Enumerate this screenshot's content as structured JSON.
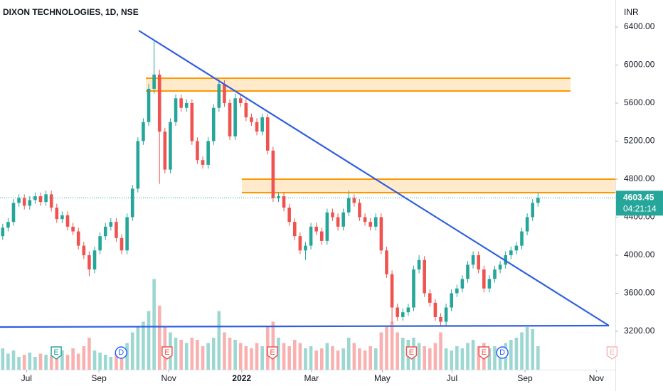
{
  "chart_data": {
    "type": "candlestick",
    "title": "DIXON TECHNOLOGIES, 1D, NSE",
    "currency": "INR",
    "countdown": "04:21:14",
    "up_color": "#26a69a",
    "down_color": "#ef5350",
    "open": [
      4200,
      4290,
      4350,
      4550,
      4600,
      4520,
      4580,
      4620,
      4560,
      4640,
      4500,
      4380,
      4420,
      4300,
      4250,
      4100,
      4000,
      3850,
      4050,
      4200,
      4300,
      4350,
      4180,
      4050,
      4400,
      4700,
      5200,
      5400,
      5750,
      5900,
      5300,
      4900,
      5400,
      5650,
      5550,
      5600,
      5200,
      5000,
      4950,
      5200,
      5550,
      5800,
      5600,
      5250,
      5650,
      5600,
      5450,
      5400,
      5300,
      5450,
      5100,
      4600,
      4620,
      4500,
      4350,
      4200,
      4050,
      4100,
      4300,
      4250,
      4150,
      4450,
      4400,
      4300,
      4450,
      4600,
      4550,
      4400,
      4350,
      4300,
      4400,
      4050,
      3800,
      3450,
      3350,
      3400,
      3450,
      3850,
      3950,
      3600,
      3500,
      3350,
      3300,
      3450,
      3600,
      3650,
      3750,
      3900,
      4000,
      3850,
      3650,
      3750,
      3850,
      3900,
      4000,
      4050,
      4100,
      4250,
      4400,
      4550
    ],
    "high": [
      4330,
      4390,
      4590,
      4640,
      4640,
      4620,
      4660,
      4660,
      4680,
      4680,
      4540,
      4460,
      4460,
      4340,
      4290,
      4140,
      4040,
      4090,
      4240,
      4340,
      4390,
      4390,
      4220,
      4440,
      4740,
      5240,
      5440,
      5800,
      6250,
      5950,
      5340,
      5440,
      5690,
      5690,
      5640,
      5640,
      5240,
      5040,
      5240,
      5590,
      5850,
      5840,
      5640,
      5700,
      5690,
      5640,
      5490,
      5440,
      5490,
      5490,
      5140,
      4660,
      4660,
      4540,
      4390,
      4240,
      4140,
      4340,
      4340,
      4290,
      4490,
      4490,
      4440,
      4490,
      4680,
      4640,
      4590,
      4440,
      4390,
      4440,
      4440,
      4090,
      3840,
      3490,
      3440,
      3490,
      3890,
      4000,
      3990,
      3640,
      3540,
      3390,
      3490,
      3640,
      3690,
      3790,
      3940,
      4040,
      4040,
      3890,
      3790,
      3890,
      3940,
      4040,
      4090,
      4140,
      4290,
      4440,
      4590,
      4660
    ],
    "low": [
      4160,
      4250,
      4310,
      4510,
      4480,
      4480,
      4540,
      4520,
      4520,
      4460,
      4340,
      4340,
      4260,
      4210,
      4060,
      3960,
      3780,
      3810,
      4010,
      4160,
      4260,
      4140,
      4010,
      4010,
      4360,
      4660,
      5160,
      5360,
      5700,
      4750,
      4860,
      4860,
      5360,
      5510,
      5510,
      5160,
      4960,
      4910,
      4910,
      5160,
      5510,
      5560,
      5210,
      5210,
      5560,
      5410,
      5360,
      5260,
      5260,
      5060,
      4560,
      4560,
      4460,
      4310,
      4160,
      4010,
      3950,
      4060,
      4210,
      4110,
      4110,
      4360,
      4260,
      4260,
      4410,
      4510,
      4360,
      4310,
      4260,
      4260,
      4010,
      3760,
      3280,
      3310,
      3310,
      3360,
      3410,
      3810,
      3560,
      3460,
      3310,
      3250,
      3260,
      3410,
      3560,
      3610,
      3710,
      3860,
      3810,
      3610,
      3610,
      3710,
      3810,
      3860,
      3960,
      4010,
      4060,
      4210,
      4360,
      4510
    ],
    "close": [
      4290,
      4350,
      4550,
      4600,
      4520,
      4580,
      4620,
      4560,
      4640,
      4500,
      4380,
      4420,
      4300,
      4250,
      4100,
      4000,
      3850,
      4050,
      4200,
      4300,
      4350,
      4180,
      4050,
      4400,
      4700,
      5200,
      5400,
      5750,
      5900,
      5300,
      4900,
      5400,
      5650,
      5550,
      5600,
      5200,
      5000,
      4950,
      5200,
      5550,
      5800,
      5600,
      5250,
      5650,
      5600,
      5450,
      5400,
      5300,
      5450,
      5100,
      4600,
      4620,
      4500,
      4350,
      4200,
      4050,
      4100,
      4300,
      4250,
      4150,
      4450,
      4400,
      4300,
      4450,
      4600,
      4550,
      4400,
      4350,
      4300,
      4400,
      4050,
      3800,
      3450,
      3350,
      3400,
      3450,
      3850,
      3950,
      3600,
      3500,
      3350,
      3300,
      3450,
      3600,
      3650,
      3750,
      3900,
      4000,
      3850,
      3650,
      3750,
      3850,
      3900,
      4000,
      4050,
      4100,
      4250,
      4400,
      4550,
      4603.45
    ],
    "volume": [
      20,
      15,
      18,
      12,
      14,
      16,
      12,
      15,
      14,
      13,
      16,
      18,
      14,
      20,
      15,
      22,
      30,
      18,
      16,
      14,
      12,
      15,
      18,
      25,
      35,
      40,
      45,
      55,
      85,
      60,
      40,
      35,
      30,
      28,
      25,
      30,
      28,
      22,
      25,
      30,
      55,
      35,
      30,
      28,
      25,
      22,
      20,
      25,
      22,
      40,
      45,
      30,
      25,
      22,
      28,
      25,
      20,
      22,
      18,
      20,
      25,
      22,
      18,
      20,
      30,
      25,
      20,
      18,
      22,
      20,
      35,
      40,
      45,
      35,
      30,
      28,
      30,
      25,
      22,
      20,
      25,
      35,
      20,
      18,
      22,
      20,
      25,
      28,
      22,
      25,
      20,
      22,
      18,
      25,
      28,
      30,
      35,
      40,
      38,
      22
    ],
    "volume_ylim": [
      0,
      100
    ],
    "xlim": [
      -0.5,
      113.3
    ],
    "xticks": [
      {
        "value": 4.4,
        "label": "Jul"
      },
      {
        "value": 17.8,
        "label": "Sep"
      },
      {
        "value": 30.7,
        "label": "Nov"
      },
      {
        "value": 44.2,
        "label": "2022"
      },
      {
        "value": 57.1,
        "label": "Mar"
      },
      {
        "value": 70.2,
        "label": "May"
      },
      {
        "value": 83.1,
        "label": "Jul"
      },
      {
        "value": 96.6,
        "label": "Sep"
      },
      {
        "value": 109.8,
        "label": "Nov"
      }
    ],
    "ylim": [
      2796,
      6684
    ],
    "yticks": [
      {
        "value": 6400,
        "label": "6400.00"
      },
      {
        "value": 6000,
        "label": "6000.00"
      },
      {
        "value": 5600,
        "label": "5600.00"
      },
      {
        "value": 5200,
        "label": "5200.00"
      },
      {
        "value": 4800,
        "label": "4800.00"
      },
      {
        "value": 4400,
        "label": "4400.00"
      },
      {
        "value": 4000,
        "label": "4000.00"
      },
      {
        "value": 3600,
        "label": "3600.00"
      },
      {
        "value": 3200,
        "label": "3200.00"
      }
    ],
    "events": [
      {
        "label": "E",
        "at": 9.9,
        "color": "#26a69a"
      },
      {
        "label": "D",
        "at": 21.9,
        "color": "#2962ff"
      },
      {
        "label": "E",
        "at": 30.4,
        "color": "#ef5350"
      },
      {
        "label": "E",
        "at": 49.9,
        "color": "#ef5350"
      },
      {
        "label": "E",
        "at": 75.6,
        "color": "#ef5350"
      },
      {
        "label": "E",
        "at": 89.0,
        "color": "#ef5350"
      },
      {
        "label": "D",
        "at": 92.4,
        "color": "#2962ff"
      },
      {
        "label": "E",
        "at": 112.7,
        "color": "#f2b8b8"
      }
    ]
  }
}
